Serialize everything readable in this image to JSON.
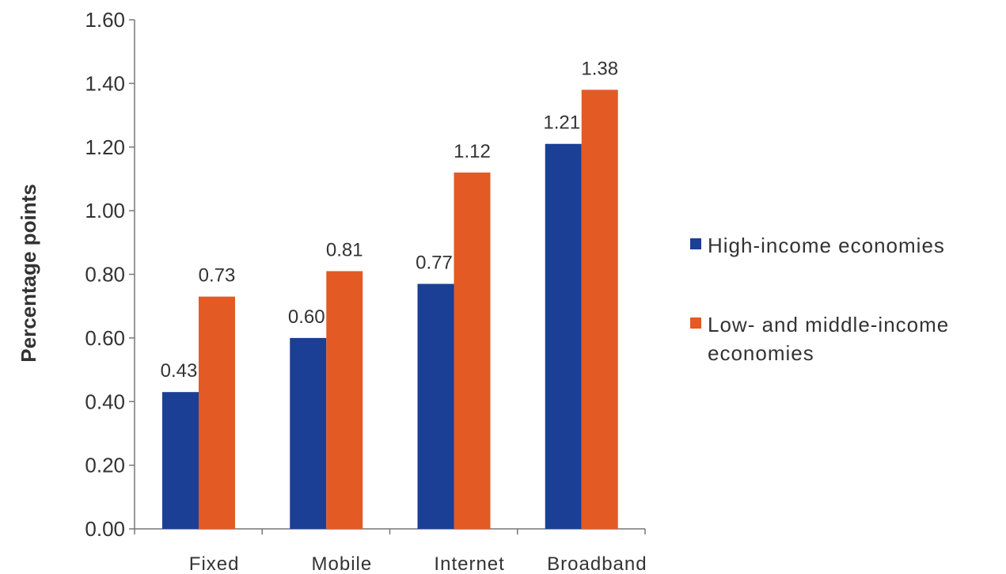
{
  "chart_data": {
    "type": "bar",
    "categories": [
      "Fixed",
      "Mobile",
      "Internet",
      "Broadband"
    ],
    "series": [
      {
        "name": "High-income economies",
        "values": [
          0.43,
          0.6,
          0.77,
          1.21
        ],
        "labels": [
          "0.43",
          "0.60",
          "0.77",
          "1.21"
        ],
        "color": "#1b3f94"
      },
      {
        "name": "Low- and middle-income economies",
        "values": [
          0.73,
          0.81,
          1.12,
          1.38
        ],
        "labels": [
          "0.73",
          "0.81",
          "1.12",
          "1.38"
        ],
        "color": "#e35a25"
      }
    ],
    "title": "",
    "xlabel": "",
    "ylabel": "Percentage points",
    "ylim": [
      0,
      1.6
    ],
    "yticks": [
      "0.00",
      "0.20",
      "0.40",
      "0.60",
      "0.80",
      "1.00",
      "1.20",
      "1.40",
      "1.60"
    ],
    "grid": false,
    "legend_position": "right",
    "legend_lines": [
      [
        "High-income economies"
      ],
      [
        "Low- and middle-income",
        "economies"
      ]
    ]
  }
}
